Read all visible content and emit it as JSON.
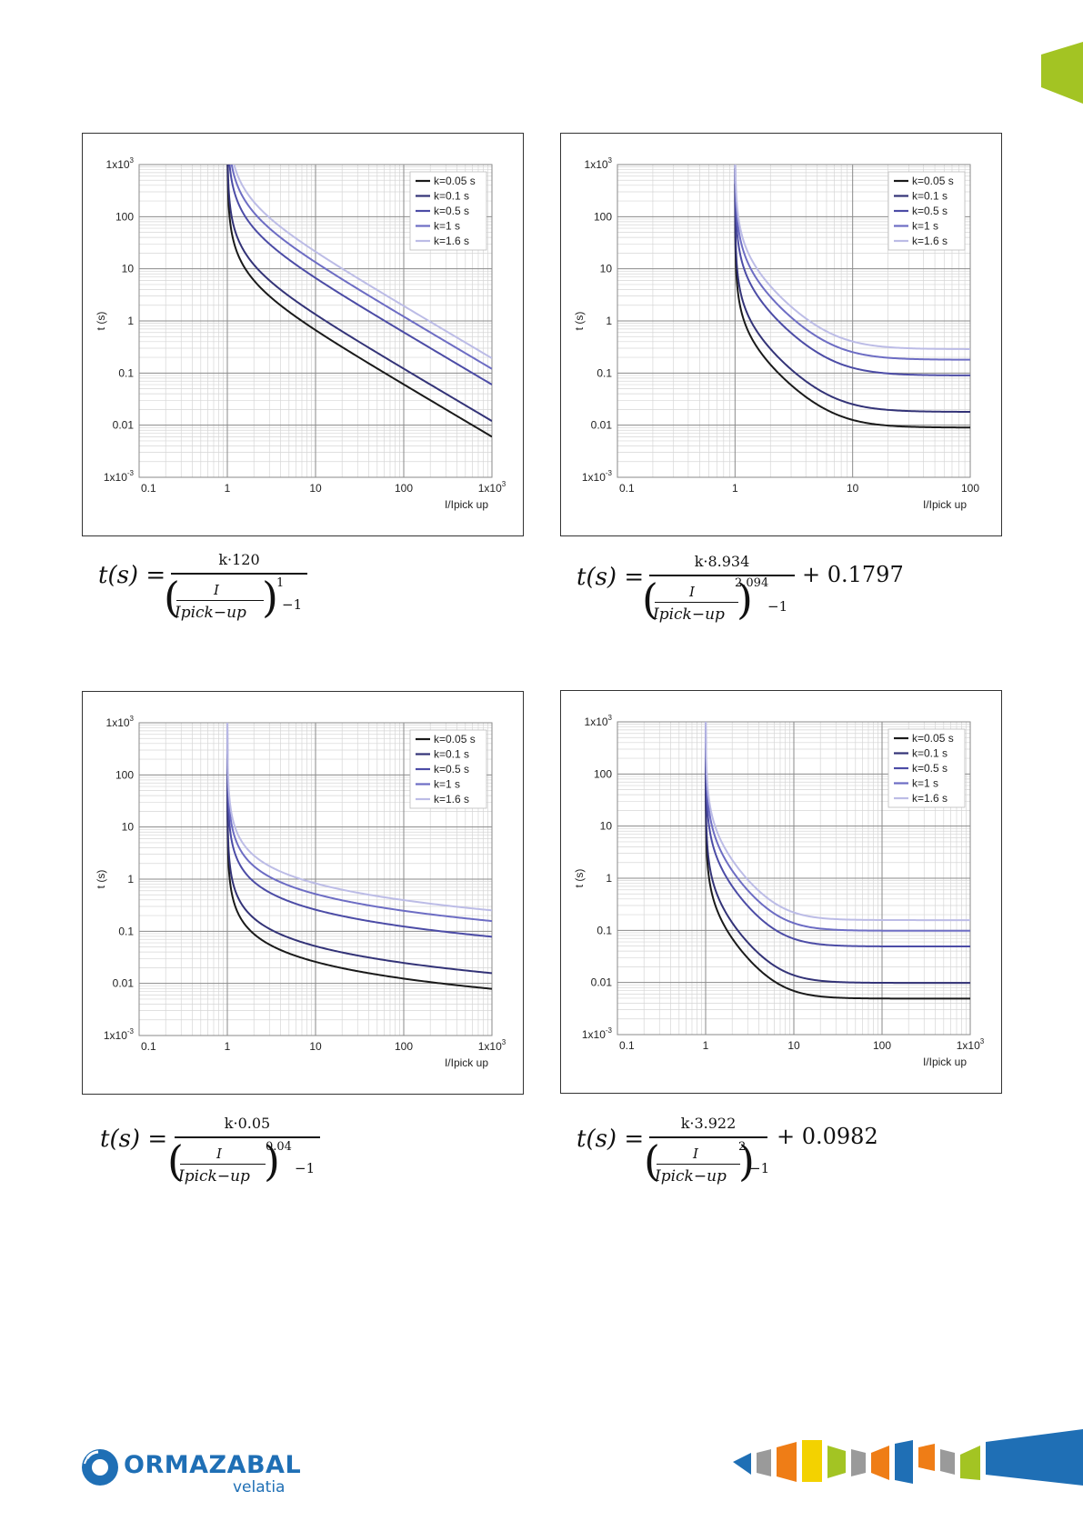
{
  "page": {
    "brand": {
      "name": "ORMAZABAL",
      "sub": "velatia"
    },
    "colors": {
      "accent_green": "#a3c423",
      "brand_blue": "#1f6fb5",
      "series": [
        "#1a1a1a",
        "#333377",
        "#4c4ca6",
        "#6d6dc4",
        "#bcbce6"
      ]
    }
  },
  "chart_data": [
    {
      "type": "line",
      "scale": "log-log",
      "title": "",
      "xlabel": "I/Ipick up",
      "ylabel": "t (s)",
      "xlim": [
        0.1,
        1000
      ],
      "ylim": [
        0.001,
        1000
      ],
      "x_ticks": [
        "0.1",
        "1",
        "10",
        "100",
        "1x10^3"
      ],
      "y_ticks": [
        "1x10^-3",
        "0.01",
        "0.1",
        "1",
        "10",
        "100",
        "1x10^3"
      ],
      "legend_position": "top-right",
      "grid": true,
      "series": [
        {
          "name": "k=0.05 s",
          "k": 0.05
        },
        {
          "name": "k=0.1 s",
          "k": 0.1
        },
        {
          "name": "k=0.5 s",
          "k": 0.5
        },
        {
          "name": "k=1 s",
          "k": 1
        },
        {
          "name": "k=1.6 s",
          "k": 1.6
        }
      ],
      "curve": {
        "A": 120,
        "p": 1,
        "B": 0
      },
      "formula": {
        "lhs": "t(s) =",
        "numerator": "k·120",
        "exponent": "1",
        "minus": "−1",
        "inner_top": "I",
        "inner_bottom": "Ipick−up",
        "tail": ""
      }
    },
    {
      "type": "line",
      "scale": "log-log",
      "title": "",
      "xlabel": "I/Ipick up",
      "ylabel": "t (s)",
      "xlim": [
        0.1,
        100
      ],
      "ylim": [
        0.001,
        1000
      ],
      "x_ticks": [
        "0.1",
        "1",
        "10",
        "100"
      ],
      "y_ticks": [
        "1x10^-3",
        "0.01",
        "0.1",
        "1",
        "10",
        "100",
        "1x10^3"
      ],
      "legend_position": "top-right",
      "grid": true,
      "series": [
        {
          "name": "k=0.05 s",
          "k": 0.05
        },
        {
          "name": "k=0.1 s",
          "k": 0.1
        },
        {
          "name": "k=0.5 s",
          "k": 0.5
        },
        {
          "name": "k=1 s",
          "k": 1
        },
        {
          "name": "k=1.6 s",
          "k": 1.6
        }
      ],
      "curve": {
        "A": 8.934,
        "p": 2.094,
        "B": 0.1797
      },
      "formula": {
        "lhs": "t(s) =",
        "numerator": "k·8.934",
        "exponent": "2.094",
        "minus": "−1",
        "inner_top": "I",
        "inner_bottom": "Ipick−up",
        "tail": "+ 0.1797"
      }
    },
    {
      "type": "line",
      "scale": "log-log",
      "title": "",
      "xlabel": "I/Ipick up",
      "ylabel": "t (s)",
      "xlim": [
        0.1,
        1000
      ],
      "ylim": [
        0.001,
        1000
      ],
      "x_ticks": [
        "0.1",
        "1",
        "10",
        "100",
        "1x10^3"
      ],
      "y_ticks": [
        "1x10^-3",
        "0.01",
        "0.1",
        "1",
        "10",
        "100",
        "1x10^3"
      ],
      "legend_position": "top-right",
      "grid": true,
      "series": [
        {
          "name": "k=0.05 s",
          "k": 0.05
        },
        {
          "name": "k=0.1 s",
          "k": 0.1
        },
        {
          "name": "k=0.5 s",
          "k": 0.5
        },
        {
          "name": "k=1 s",
          "k": 1
        },
        {
          "name": "k=1.6 s",
          "k": 1.6
        }
      ],
      "curve": {
        "A": 0.05,
        "p": 0.04,
        "B": 0
      },
      "formula": {
        "lhs": "t(s) =",
        "numerator": "k·0.05",
        "exponent": "0.04",
        "minus": "−1",
        "inner_top": "I",
        "inner_bottom": "Ipick−up",
        "tail": ""
      }
    },
    {
      "type": "line",
      "scale": "log-log",
      "title": "",
      "xlabel": "I/Ipick up",
      "ylabel": "t (s)",
      "xlim": [
        0.1,
        1000
      ],
      "ylim": [
        0.001,
        1000
      ],
      "x_ticks": [
        "0.1",
        "1",
        "10",
        "100",
        "1x10^3"
      ],
      "y_ticks": [
        "1x10^-3",
        "0.01",
        "0.1",
        "1",
        "10",
        "100",
        "1x10^3"
      ],
      "legend_position": "top-right",
      "grid": true,
      "series": [
        {
          "name": "k=0.05 s",
          "k": 0.05
        },
        {
          "name": "k=0.1 s",
          "k": 0.1
        },
        {
          "name": "k=0.5 s",
          "k": 0.5
        },
        {
          "name": "k=1 s",
          "k": 1
        },
        {
          "name": "k=1.6 s",
          "k": 1.6
        }
      ],
      "curve": {
        "A": 3.922,
        "p": 2,
        "B": 0.0982
      },
      "formula": {
        "lhs": "t(s) =",
        "numerator": "k·3.922",
        "exponent": "2",
        "minus": "−1",
        "inner_top": "I",
        "inner_bottom": "Ipick−up",
        "tail": "+ 0.0982"
      }
    }
  ]
}
